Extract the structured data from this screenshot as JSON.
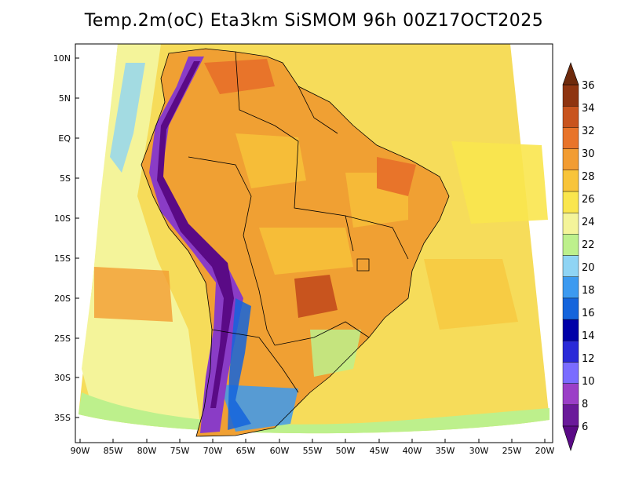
{
  "title": "Temp.2m(oC) Eta3km SiSMOM 96h 00Z17OCT2025",
  "lat_labels": [
    "10N",
    "5N",
    "EQ",
    "5S",
    "10S",
    "15S",
    "20S",
    "25S",
    "30S",
    "35S"
  ],
  "lon_labels": [
    "90W",
    "85W",
    "80W",
    "75W",
    "70W",
    "65W",
    "60W",
    "55W",
    "50W",
    "45W",
    "40W",
    "35W",
    "30W",
    "25W",
    "20W"
  ],
  "colorbar": {
    "labels": [
      "6",
      "8",
      "10",
      "12",
      "14",
      "16",
      "18",
      "20",
      "22",
      "24",
      "26",
      "28",
      "30",
      "32",
      "34",
      "36"
    ],
    "colors": [
      "#6a1a9a",
      "#9b3fc7",
      "#7a6cff",
      "#2a2ad8",
      "#0000a8",
      "#1464dc",
      "#3c9af0",
      "#8fd4f4",
      "#bdf08c",
      "#f4f49a",
      "#fae64e",
      "#f8c43a",
      "#f29c32",
      "#e8742a",
      "#c8541e",
      "#8e3410"
    ],
    "under_color": "#5a0a86",
    "over_color": "#6e2a0c"
  },
  "colors": {
    "ocean": "#f6dc5a",
    "land_warm": "#f0a033",
    "andes": "#8a3cc6"
  }
}
